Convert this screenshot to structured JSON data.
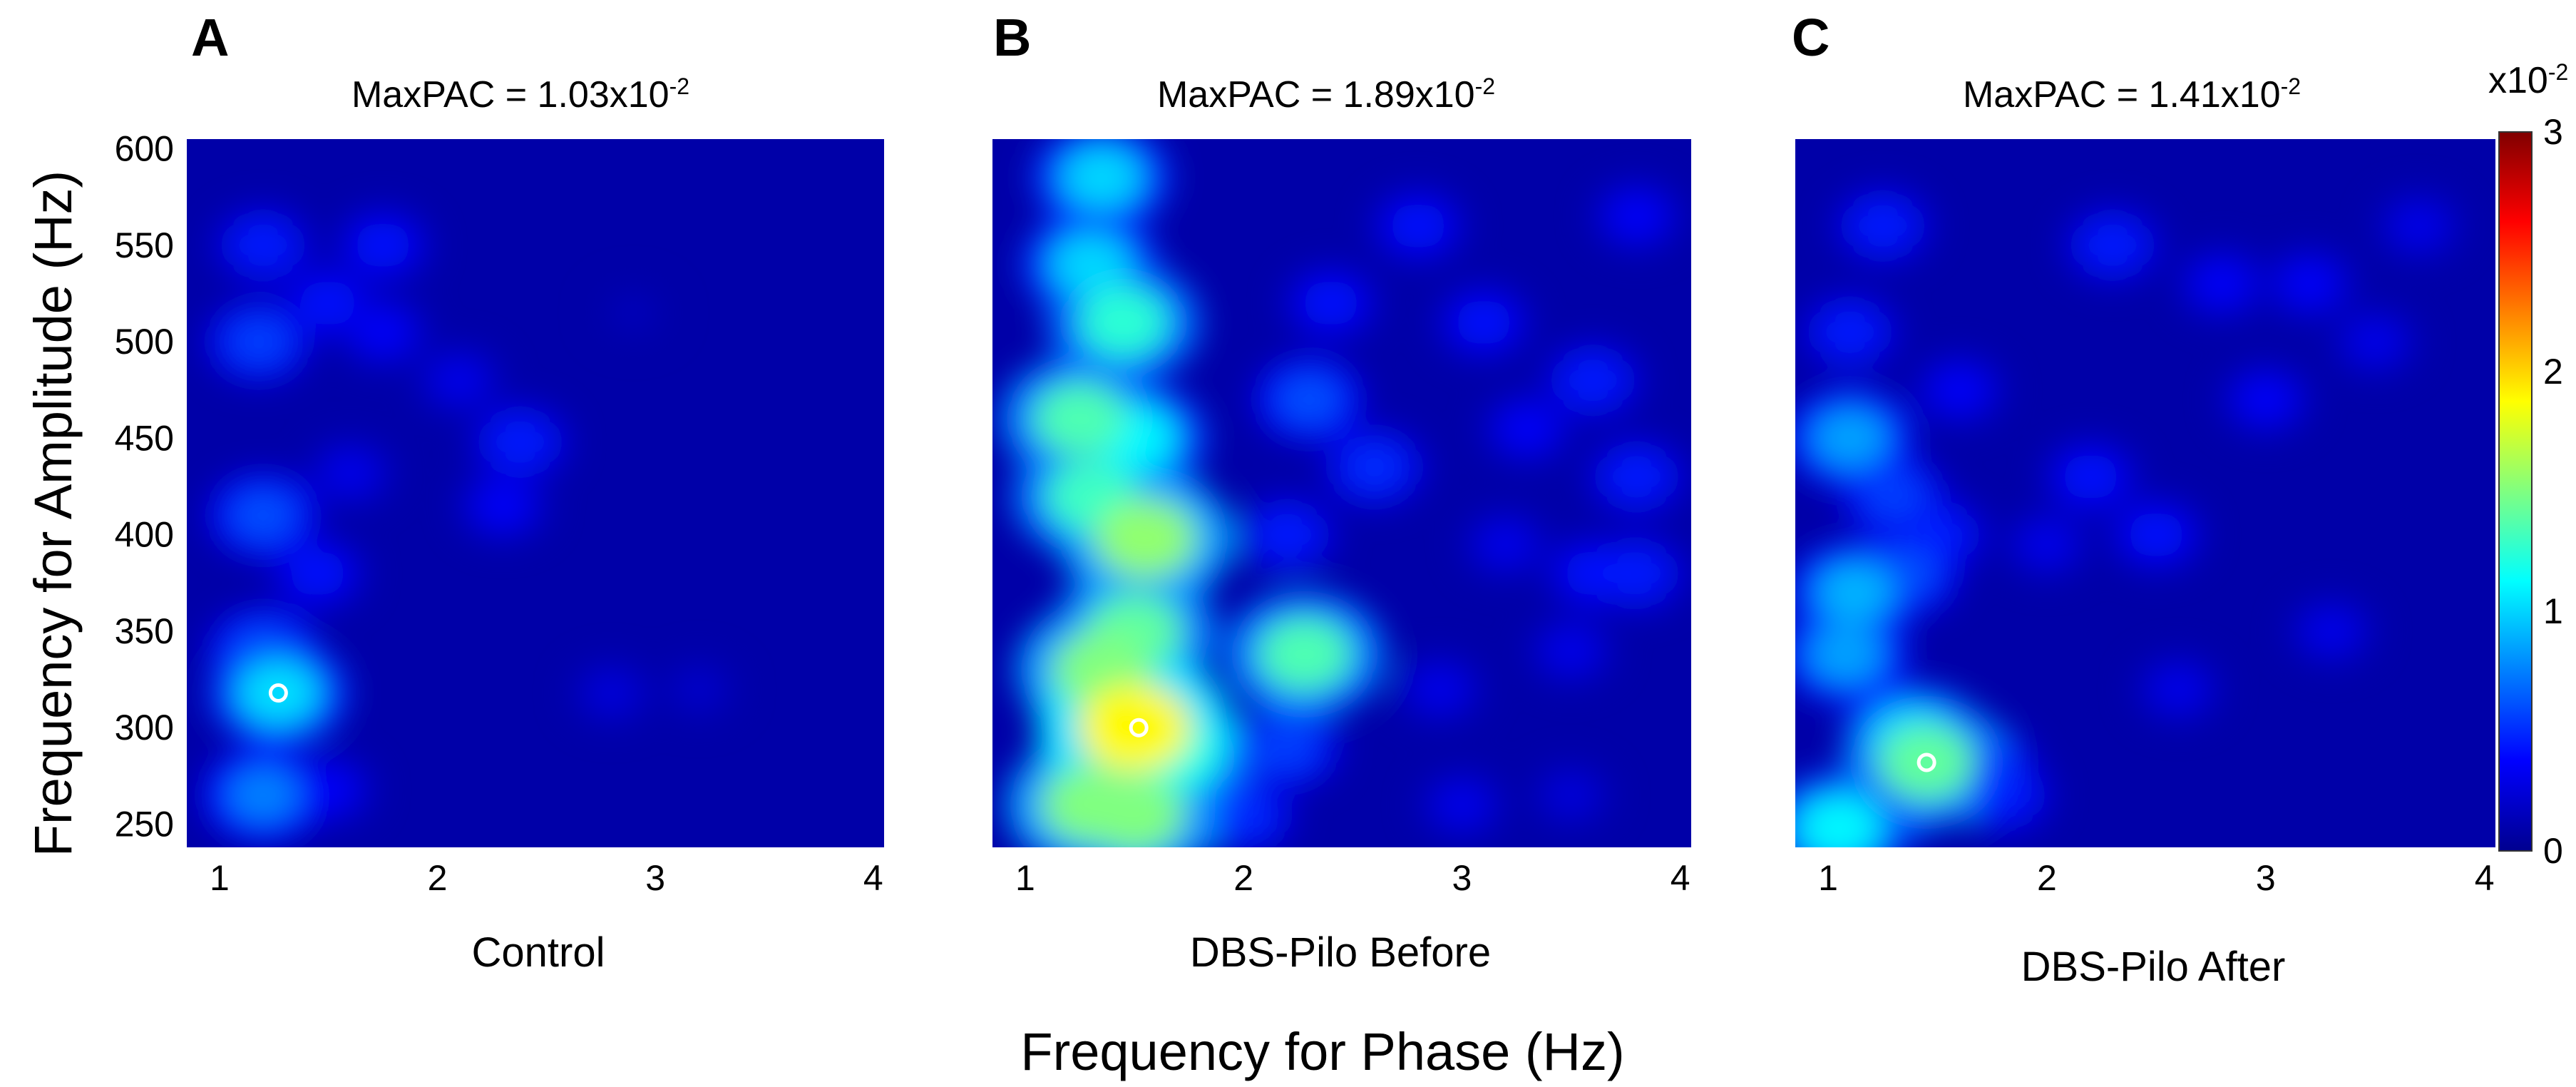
{
  "colormap": {
    "name": "jet",
    "stops": [
      "#00008f",
      "#0000ff",
      "#0080ff",
      "#00ffff",
      "#80ff80",
      "#ffff00",
      "#ff8000",
      "#ff0000",
      "#800000"
    ]
  },
  "colorbar": {
    "exponent_label": "x10",
    "exponent_sup": "-2",
    "ticks": [
      "0",
      "1",
      "2",
      "3"
    ],
    "range": [
      0,
      3
    ]
  },
  "xlabel": "Frequency for Phase (Hz)",
  "ylabel": "Frequency for Amplitude (Hz)",
  "chart_data": [
    {
      "type": "heatmap",
      "panel": "A",
      "condition": "Control",
      "maxpac_label": "MaxPAC = 1.03x10",
      "maxpac_sup": "-2",
      "maxpac_value": 0.0103,
      "peak": {
        "phase_hz": 1.27,
        "amp_hz": 318
      },
      "xlim": [
        0.85,
        4.05
      ],
      "ylim": [
        238,
        605
      ],
      "xticks": [
        "1",
        "2",
        "3",
        "4"
      ],
      "yticks": [
        "250",
        "300",
        "350",
        "400",
        "450",
        "500",
        "550",
        "600"
      ],
      "hotspots": [
        {
          "x": 1.27,
          "y": 318,
          "v": 1.03
        },
        {
          "x": 1.2,
          "y": 340,
          "v": 0.6
        },
        {
          "x": 1.2,
          "y": 265,
          "v": 0.75
        },
        {
          "x": 1.2,
          "y": 410,
          "v": 0.6
        },
        {
          "x": 1.18,
          "y": 500,
          "v": 0.55
        },
        {
          "x": 1.2,
          "y": 550,
          "v": 0.45
        },
        {
          "x": 1.5,
          "y": 520,
          "v": 0.4
        },
        {
          "x": 1.75,
          "y": 550,
          "v": 0.4
        },
        {
          "x": 1.45,
          "y": 380,
          "v": 0.4
        },
        {
          "x": 2.38,
          "y": 448,
          "v": 0.45
        },
        {
          "x": 2.3,
          "y": 415,
          "v": 0.35
        },
        {
          "x": 2.1,
          "y": 480,
          "v": 0.3
        },
        {
          "x": 1.75,
          "y": 505,
          "v": 0.35
        },
        {
          "x": 1.6,
          "y": 432,
          "v": 0.3
        },
        {
          "x": 1.5,
          "y": 268,
          "v": 0.35
        },
        {
          "x": 2.8,
          "y": 318,
          "v": 0.25
        },
        {
          "x": 3.2,
          "y": 320,
          "v": 0.2
        },
        {
          "x": 2.9,
          "y": 515,
          "v": 0.15
        }
      ]
    },
    {
      "type": "heatmap",
      "panel": "B",
      "condition": "DBS-Pilo Before",
      "maxpac_label": "MaxPAC = 1.89x10",
      "maxpac_sup": "-2",
      "maxpac_value": 0.0189,
      "peak": {
        "phase_hz": 1.52,
        "amp_hz": 300
      },
      "xlim": [
        0.85,
        4.05
      ],
      "ylim": [
        238,
        605
      ],
      "xticks": [
        "1",
        "2",
        "3",
        "4"
      ],
      "yticks": [
        "250",
        "300",
        "350",
        "400",
        "450",
        "500",
        "550",
        "600"
      ],
      "hotspots": [
        {
          "x": 1.5,
          "y": 300,
          "v": 1.89
        },
        {
          "x": 1.35,
          "y": 330,
          "v": 1.5
        },
        {
          "x": 1.5,
          "y": 350,
          "v": 1.4
        },
        {
          "x": 1.3,
          "y": 260,
          "v": 1.5
        },
        {
          "x": 1.5,
          "y": 255,
          "v": 1.5
        },
        {
          "x": 1.7,
          "y": 285,
          "v": 1.2
        },
        {
          "x": 1.55,
          "y": 398,
          "v": 1.55
        },
        {
          "x": 1.3,
          "y": 420,
          "v": 1.3
        },
        {
          "x": 1.25,
          "y": 460,
          "v": 1.35
        },
        {
          "x": 1.5,
          "y": 450,
          "v": 1.1
        },
        {
          "x": 1.45,
          "y": 510,
          "v": 1.25
        },
        {
          "x": 1.3,
          "y": 540,
          "v": 1.0
        },
        {
          "x": 1.35,
          "y": 585,
          "v": 1.0
        },
        {
          "x": 2.28,
          "y": 338,
          "v": 1.35
        },
        {
          "x": 2.2,
          "y": 290,
          "v": 0.55
        },
        {
          "x": 2.0,
          "y": 255,
          "v": 0.5
        },
        {
          "x": 2.3,
          "y": 470,
          "v": 0.6
        },
        {
          "x": 2.6,
          "y": 435,
          "v": 0.5
        },
        {
          "x": 2.2,
          "y": 400,
          "v": 0.45
        },
        {
          "x": 2.4,
          "y": 520,
          "v": 0.4
        },
        {
          "x": 2.8,
          "y": 560,
          "v": 0.4
        },
        {
          "x": 3.1,
          "y": 510,
          "v": 0.4
        },
        {
          "x": 3.6,
          "y": 480,
          "v": 0.45
        },
        {
          "x": 3.8,
          "y": 430,
          "v": 0.45
        },
        {
          "x": 3.3,
          "y": 455,
          "v": 0.35
        },
        {
          "x": 3.6,
          "y": 380,
          "v": 0.4
        },
        {
          "x": 3.8,
          "y": 380,
          "v": 0.45
        },
        {
          "x": 3.5,
          "y": 340,
          "v": 0.3
        },
        {
          "x": 2.9,
          "y": 320,
          "v": 0.3
        },
        {
          "x": 3.2,
          "y": 395,
          "v": 0.3
        },
        {
          "x": 3.8,
          "y": 565,
          "v": 0.35
        },
        {
          "x": 3.0,
          "y": 260,
          "v": 0.3
        },
        {
          "x": 3.5,
          "y": 265,
          "v": 0.25
        }
      ]
    },
    {
      "type": "heatmap",
      "panel": "C",
      "condition": "DBS-Pilo After",
      "maxpac_label": "MaxPAC = 1.41x10",
      "maxpac_sup": "-2",
      "maxpac_value": 0.0141,
      "peak": {
        "phase_hz": 1.45,
        "amp_hz": 282
      },
      "xlim": [
        0.85,
        4.05
      ],
      "ylim": [
        238,
        605
      ],
      "xticks": [
        "1",
        "2",
        "3",
        "4"
      ],
      "yticks": [
        "250",
        "300",
        "350",
        "400",
        "450",
        "500",
        "550",
        "600"
      ],
      "hotspots": [
        {
          "x": 1.45,
          "y": 282,
          "v": 1.41
        },
        {
          "x": 1.38,
          "y": 295,
          "v": 1.0
        },
        {
          "x": 1.05,
          "y": 248,
          "v": 1.1
        },
        {
          "x": 1.25,
          "y": 262,
          "v": 0.7
        },
        {
          "x": 1.7,
          "y": 280,
          "v": 0.55
        },
        {
          "x": 1.8,
          "y": 265,
          "v": 0.45
        },
        {
          "x": 1.08,
          "y": 338,
          "v": 0.85
        },
        {
          "x": 1.12,
          "y": 370,
          "v": 0.9
        },
        {
          "x": 1.35,
          "y": 380,
          "v": 0.6
        },
        {
          "x": 1.1,
          "y": 450,
          "v": 0.85
        },
        {
          "x": 1.3,
          "y": 420,
          "v": 0.55
        },
        {
          "x": 1.5,
          "y": 400,
          "v": 0.45
        },
        {
          "x": 1.1,
          "y": 505,
          "v": 0.45
        },
        {
          "x": 1.25,
          "y": 560,
          "v": 0.45
        },
        {
          "x": 1.6,
          "y": 475,
          "v": 0.35
        },
        {
          "x": 2.2,
          "y": 430,
          "v": 0.4
        },
        {
          "x": 2.5,
          "y": 400,
          "v": 0.4
        },
        {
          "x": 2.3,
          "y": 550,
          "v": 0.45
        },
        {
          "x": 2.8,
          "y": 530,
          "v": 0.35
        },
        {
          "x": 3.0,
          "y": 470,
          "v": 0.35
        },
        {
          "x": 3.2,
          "y": 530,
          "v": 0.35
        },
        {
          "x": 3.5,
          "y": 500,
          "v": 0.3
        },
        {
          "x": 3.3,
          "y": 350,
          "v": 0.3
        },
        {
          "x": 2.6,
          "y": 320,
          "v": 0.3
        },
        {
          "x": 2.0,
          "y": 395,
          "v": 0.3
        },
        {
          "x": 3.7,
          "y": 560,
          "v": 0.3
        }
      ]
    }
  ]
}
